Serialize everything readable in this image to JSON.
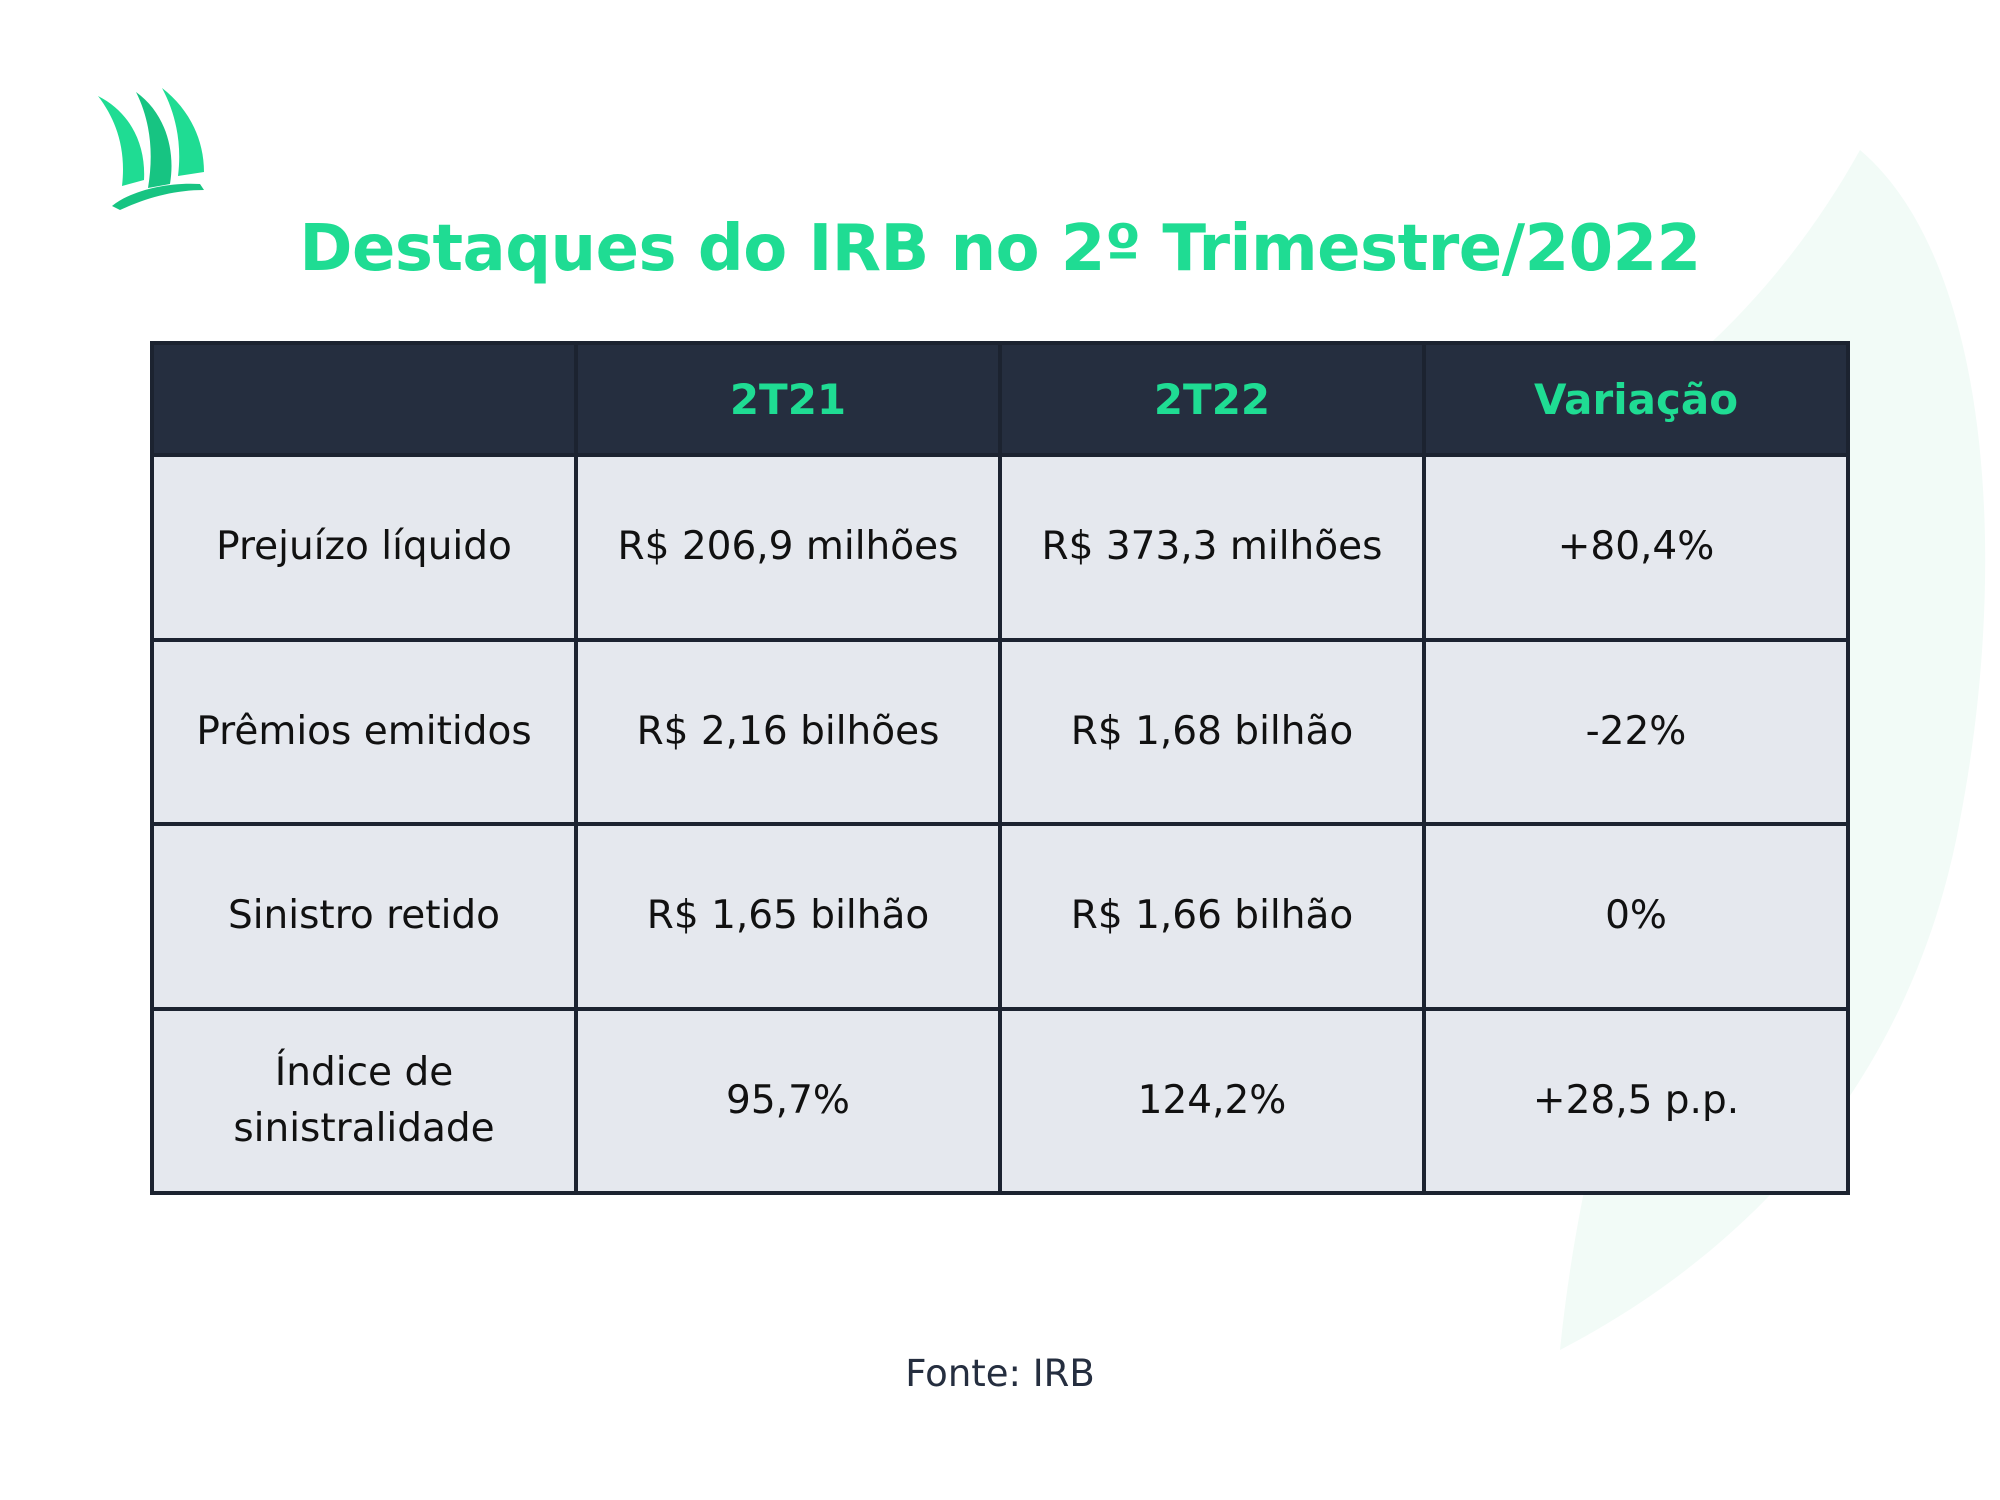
{
  "colors": {
    "accent": "#1fdc93",
    "header_bg": "#252e3f",
    "cell_bg": "#e5e8ee",
    "border": "#1c2330"
  },
  "logo": {
    "icon": "sail-logo-icon"
  },
  "title": "Destaques do IRB no 2º Trimestre/2022",
  "table": {
    "columns": [
      "",
      "2T21",
      "2T22",
      "Variação"
    ],
    "rows": [
      {
        "label": "Prejuízo líquido",
        "values": [
          "R$ 206,9 milhões",
          "R$ 373,3 milhões",
          "+80,4%"
        ]
      },
      {
        "label": "Prêmios emitidos",
        "values": [
          "R$ 2,16 bilhões",
          "R$ 1,68 bilhão",
          "-22%"
        ]
      },
      {
        "label": "Sinistro retido",
        "values": [
          "R$ 1,65 bilhão",
          "R$ 1,66 bilhão",
          "0%"
        ]
      },
      {
        "label": "Índice de sinistralidade",
        "values": [
          "95,7%",
          "124,2%",
          "+28,5 p.p."
        ]
      }
    ]
  },
  "source": "Fonte: IRB"
}
